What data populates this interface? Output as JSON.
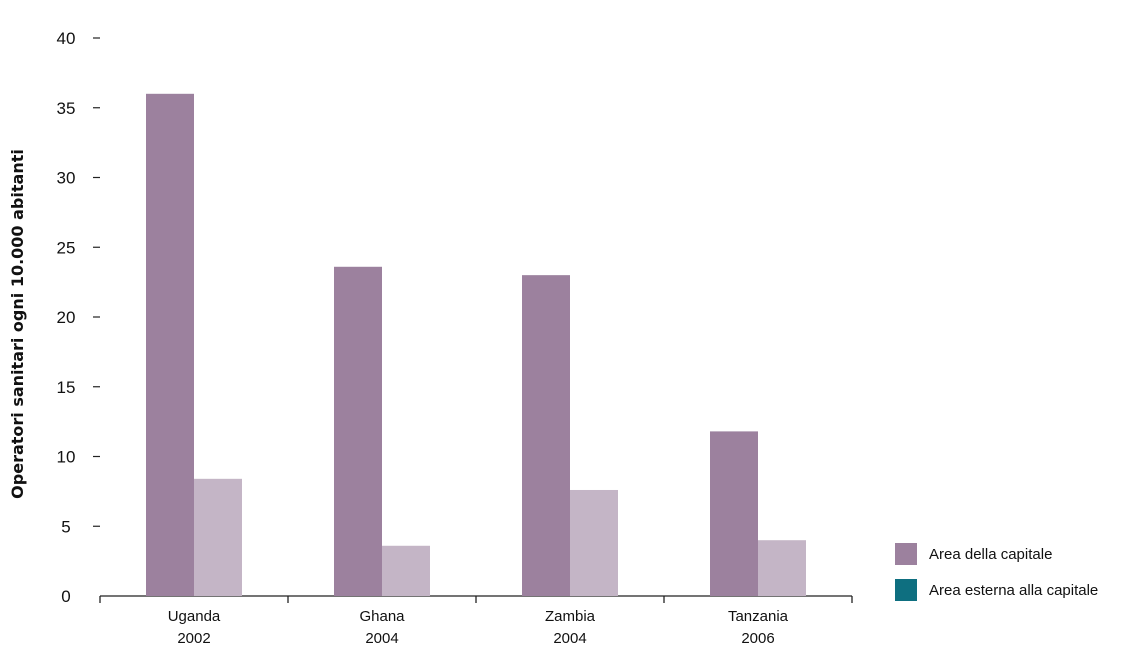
{
  "chart_data": {
    "type": "bar",
    "categories": [
      {
        "name": "Uganda",
        "year": "2002"
      },
      {
        "name": "Ghana",
        "year": "2004"
      },
      {
        "name": "Zambia",
        "year": "2004"
      },
      {
        "name": "Tanzania",
        "year": "2006"
      }
    ],
    "series": [
      {
        "name": "Area della capitale",
        "color": "#9c819e",
        "values": [
          36,
          23.6,
          23,
          11.8
        ]
      },
      {
        "name": "Area esterna alla capitale",
        "color": "#c4b5c6",
        "legend_color": "#0e6f80",
        "values": [
          8.4,
          3.6,
          7.6,
          4
        ]
      }
    ],
    "ylabel": "Operatori sanitari ogni 10.000 abitanti",
    "xlabel": "",
    "title": "",
    "ylim": [
      0,
      40
    ],
    "yticks": [
      0,
      5,
      10,
      15,
      20,
      25,
      30,
      35,
      40
    ],
    "grid": false,
    "legend": "bottom-right"
  }
}
